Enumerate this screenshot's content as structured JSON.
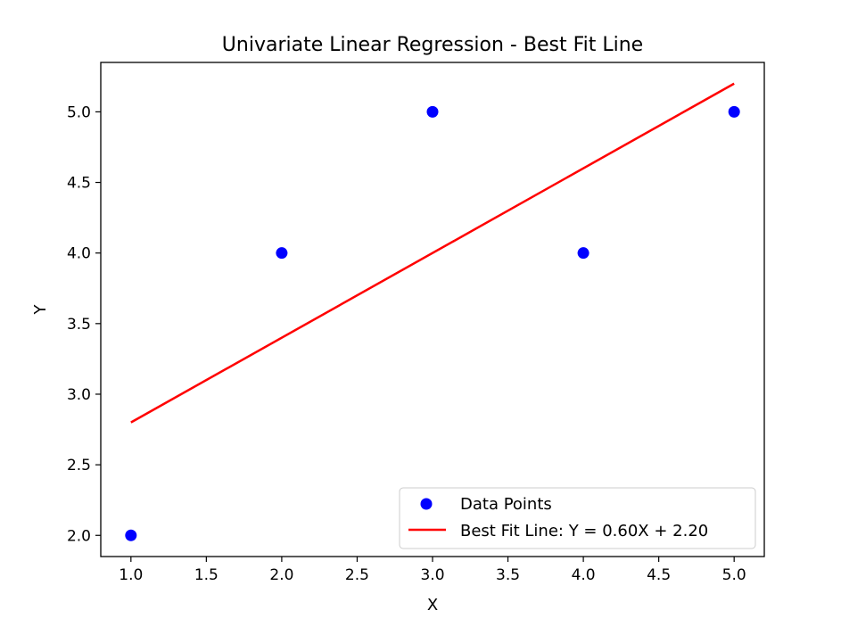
{
  "chart_data": {
    "type": "scatter",
    "title": "Univariate Linear Regression - Best Fit Line",
    "xlabel": "X",
    "ylabel": "Y",
    "xlim": [
      0.8,
      5.2
    ],
    "ylim": [
      1.85,
      5.35
    ],
    "xticks": [
      1.0,
      1.5,
      2.0,
      2.5,
      3.0,
      3.5,
      4.0,
      4.5,
      5.0
    ],
    "xtick_labels": [
      "1.0",
      "1.5",
      "2.0",
      "2.5",
      "3.0",
      "3.5",
      "4.0",
      "4.5",
      "5.0"
    ],
    "yticks": [
      2.0,
      2.5,
      3.0,
      3.5,
      4.0,
      4.5,
      5.0
    ],
    "ytick_labels": [
      "2.0",
      "2.5",
      "3.0",
      "3.5",
      "4.0",
      "4.5",
      "5.0"
    ],
    "grid": false,
    "legend_position": "lower-right",
    "series": [
      {
        "name": "Data Points",
        "kind": "scatter",
        "color": "#0000ff",
        "x": [
          1,
          2,
          3,
          4,
          5
        ],
        "y": [
          2,
          4,
          5,
          4,
          5
        ]
      },
      {
        "name": "Best Fit Line: Y = 0.60X + 2.20",
        "kind": "line",
        "color": "#ff0000",
        "x": [
          1,
          5
        ],
        "y": [
          2.8,
          5.2
        ]
      }
    ]
  }
}
